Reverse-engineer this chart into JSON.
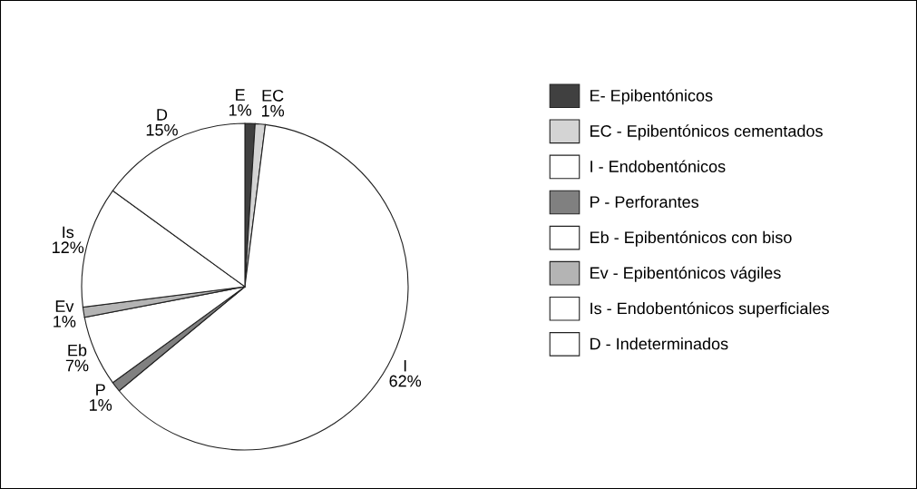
{
  "chart_data": {
    "type": "pie",
    "categories": [
      "E- Epibentónicos",
      "EC - Epibentónicos cementados",
      "I - Endobentónicos",
      "P - Perforantes",
      "Eb - Epibentónicos con biso",
      "Ev - Epibentónicos vágiles",
      "Is - Endobentónicos superficiales",
      "D - Indeterminados"
    ],
    "values": [
      1,
      1,
      62,
      1,
      7,
      1,
      12,
      15
    ],
    "value_labels": [
      "E\n1%",
      "EC\n1%",
      "I\n62%",
      "P\n1%",
      "Eb\n7%",
      "Ev\n1%",
      "Is\n12%",
      "D\n15%"
    ],
    "colors": [
      "#404040",
      "#d4d4d4",
      "#ffffff",
      "#808080",
      "#ffffff",
      "#b4b4b4",
      "#ffffff",
      "#ffffff"
    ],
    "legend": "right"
  }
}
